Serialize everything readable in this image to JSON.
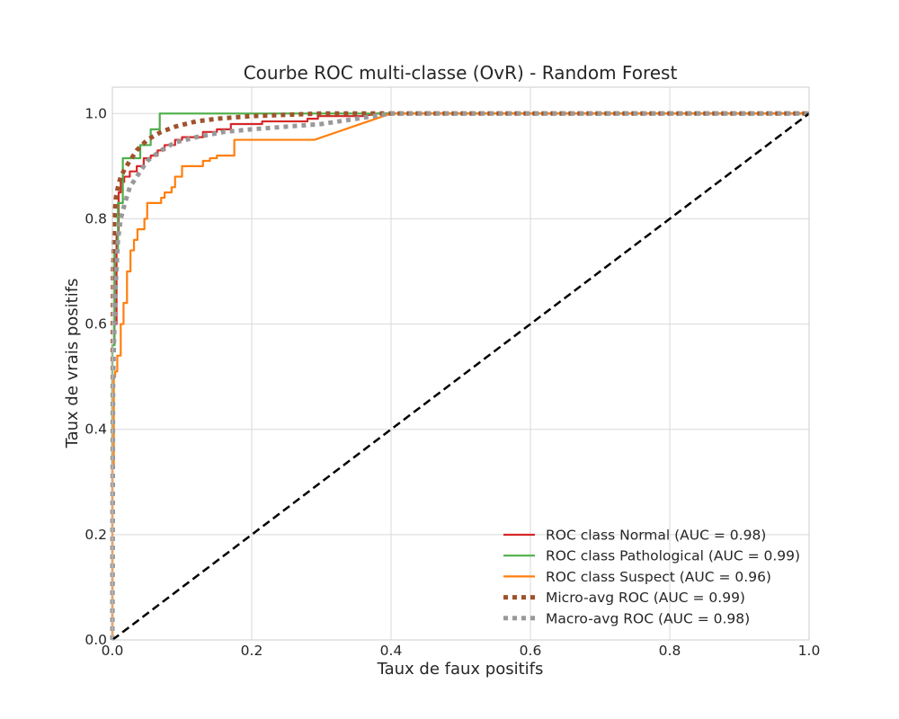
{
  "chart_data": {
    "type": "line",
    "title": "Courbe ROC multi-classe (OvR) - Random Forest",
    "xlabel": "Taux de faux positifs",
    "ylabel": "Taux de vrais positifs",
    "xlim": [
      0.0,
      1.0
    ],
    "ylim": [
      0.0,
      1.05
    ],
    "xticks": [
      "0.0",
      "0.2",
      "0.4",
      "0.6",
      "0.8",
      "1.0"
    ],
    "yticks": [
      "0.0",
      "0.2",
      "0.4",
      "0.6",
      "0.8",
      "1.0"
    ],
    "grid": true,
    "legend_position": "lower-right",
    "series": [
      {
        "name": "ROC class Normal (AUC = 0.98)",
        "color": "#d62728",
        "style": "solid",
        "x": [
          0,
          0,
          0.003,
          0.003,
          0.006,
          0.006,
          0.009,
          0.009,
          0.012,
          0.012,
          0.017,
          0.017,
          0.025,
          0.025,
          0.035,
          0.035,
          0.045,
          0.045,
          0.055,
          0.055,
          0.065,
          0.065,
          0.075,
          0.075,
          0.09,
          0.09,
          0.1,
          0.1,
          0.13,
          0.13,
          0.15,
          0.15,
          0.17,
          0.17,
          0.215,
          0.215,
          0.28,
          0.28,
          0.295,
          0.295,
          0.36,
          0.38,
          0.4,
          1.0
        ],
        "y": [
          0,
          0.56,
          0.56,
          0.6,
          0.6,
          0.77,
          0.77,
          0.85,
          0.85,
          0.87,
          0.87,
          0.88,
          0.88,
          0.89,
          0.89,
          0.9,
          0.9,
          0.915,
          0.915,
          0.92,
          0.92,
          0.93,
          0.93,
          0.94,
          0.94,
          0.95,
          0.95,
          0.955,
          0.955,
          0.965,
          0.965,
          0.97,
          0.97,
          0.98,
          0.98,
          0.985,
          0.985,
          0.99,
          0.99,
          0.995,
          0.995,
          1.0,
          1.0,
          1.0
        ]
      },
      {
        "name": "ROC class Pathological (AUC = 0.99)",
        "color": "#4daf4a",
        "style": "solid",
        "x": [
          0,
          0,
          0.003,
          0.003,
          0.008,
          0.008,
          0.015,
          0.015,
          0.04,
          0.04,
          0.055,
          0.055,
          0.068,
          0.068,
          1.0
        ],
        "y": [
          0,
          0.56,
          0.56,
          0.74,
          0.74,
          0.83,
          0.83,
          0.915,
          0.915,
          0.94,
          0.94,
          0.97,
          0.97,
          1.0,
          1.0
        ]
      },
      {
        "name": "ROC class Suspect (AUC = 0.96)",
        "color": "#ff7f0e",
        "style": "solid",
        "x": [
          0,
          0,
          0.002,
          0.002,
          0.004,
          0.004,
          0.007,
          0.007,
          0.012,
          0.012,
          0.016,
          0.016,
          0.021,
          0.021,
          0.026,
          0.026,
          0.031,
          0.031,
          0.036,
          0.036,
          0.046,
          0.046,
          0.05,
          0.05,
          0.07,
          0.07,
          0.075,
          0.075,
          0.085,
          0.085,
          0.09,
          0.09,
          0.1,
          0.1,
          0.13,
          0.13,
          0.14,
          0.14,
          0.15,
          0.15,
          0.175,
          0.175,
          0.29,
          0.4,
          1.0
        ],
        "y": [
          0,
          0.33,
          0.33,
          0.5,
          0.5,
          0.51,
          0.51,
          0.54,
          0.54,
          0.6,
          0.6,
          0.64,
          0.64,
          0.7,
          0.7,
          0.74,
          0.74,
          0.76,
          0.76,
          0.78,
          0.78,
          0.8,
          0.8,
          0.83,
          0.83,
          0.84,
          0.84,
          0.85,
          0.85,
          0.86,
          0.86,
          0.88,
          0.88,
          0.9,
          0.9,
          0.91,
          0.91,
          0.915,
          0.915,
          0.92,
          0.92,
          0.95,
          0.95,
          1.0,
          1.0
        ]
      },
      {
        "name": "Micro-avg ROC (AUC = 0.99)",
        "color": "#a0522d",
        "style": "dotted",
        "x": [
          0,
          0.001,
          0.003,
          0.005,
          0.008,
          0.012,
          0.018,
          0.025,
          0.035,
          0.05,
          0.07,
          0.09,
          0.12,
          0.15,
          0.2,
          0.3,
          0.4,
          1.0
        ],
        "y": [
          0,
          0.7,
          0.8,
          0.84,
          0.86,
          0.88,
          0.895,
          0.91,
          0.93,
          0.95,
          0.965,
          0.975,
          0.985,
          0.99,
          0.995,
          1.0,
          1.0,
          1.0
        ]
      },
      {
        "name": "Macro-avg ROC (AUC = 0.98)",
        "color": "#999999",
        "style": "dotted",
        "x": [
          0,
          0.001,
          0.003,
          0.005,
          0.008,
          0.012,
          0.018,
          0.025,
          0.035,
          0.05,
          0.07,
          0.09,
          0.12,
          0.16,
          0.2,
          0.25,
          0.3,
          0.35,
          0.4,
          1.0
        ],
        "y": [
          0,
          0.5,
          0.6,
          0.68,
          0.76,
          0.8,
          0.83,
          0.86,
          0.88,
          0.91,
          0.93,
          0.945,
          0.955,
          0.965,
          0.97,
          0.975,
          0.98,
          0.99,
          1.0,
          1.0
        ]
      },
      {
        "name": "",
        "color": "#000000",
        "style": "dashed",
        "x": [
          0,
          1
        ],
        "y": [
          0,
          1
        ]
      }
    ]
  }
}
